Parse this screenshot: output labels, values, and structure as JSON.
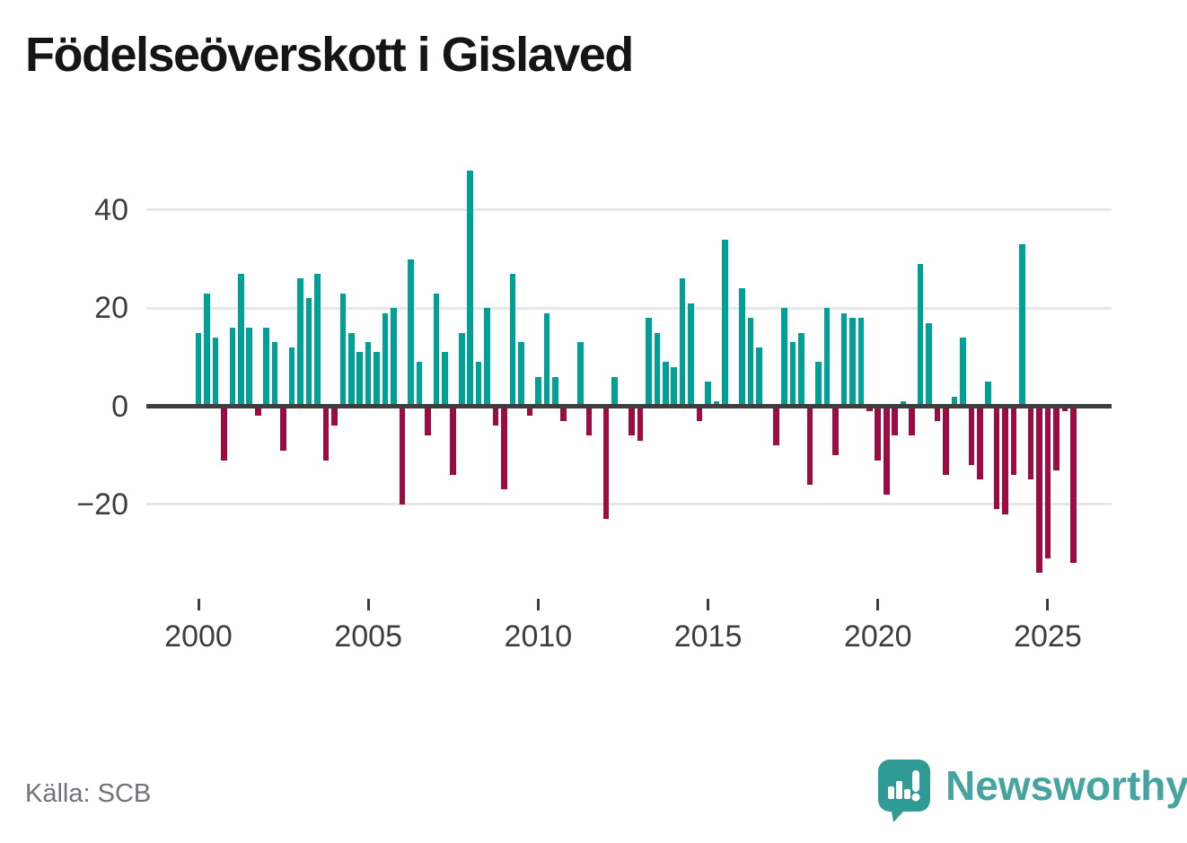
{
  "title": "Födelseöverskott i Gislaved",
  "source": "Källa: SCB",
  "logo": {
    "text": "Newsworthy"
  },
  "y_axis": {
    "ticks": [
      {
        "label": "40",
        "value": 40
      },
      {
        "label": "20",
        "value": 20
      },
      {
        "label": "0",
        "value": 0
      },
      {
        "label": "−20",
        "value": -20
      }
    ],
    "gridline_values": [
      40,
      20,
      -20
    ]
  },
  "x_axis": {
    "ticks": [
      {
        "label": "2000",
        "year": 2000
      },
      {
        "label": "2005",
        "year": 2005
      },
      {
        "label": "2010",
        "year": 2010
      },
      {
        "label": "2015",
        "year": 2015
      },
      {
        "label": "2020",
        "year": 2020
      },
      {
        "label": "2025",
        "year": 2025
      }
    ]
  },
  "chart_data": {
    "type": "bar",
    "title": "Födelseöverskott i Gislaved",
    "period": "quarterly",
    "start": "2000-Q1",
    "end": "2025-Q4",
    "ylim": [
      -36,
      50
    ],
    "grid": true,
    "zero_line": true,
    "colors": {
      "positive": "#00a096",
      "negative": "#9c0c41"
    },
    "series_by_year": [
      {
        "year": 2000,
        "values": [
          15,
          23,
          14,
          -11
        ]
      },
      {
        "year": 2001,
        "values": [
          16,
          27,
          16,
          -2
        ]
      },
      {
        "year": 2002,
        "values": [
          16,
          13,
          -9,
          12
        ]
      },
      {
        "year": 2003,
        "values": [
          26,
          22,
          27,
          -11
        ]
      },
      {
        "year": 2004,
        "values": [
          -4,
          23,
          15,
          11
        ]
      },
      {
        "year": 2005,
        "values": [
          13,
          11,
          19,
          20
        ]
      },
      {
        "year": 2006,
        "values": [
          -20,
          30,
          9,
          -6
        ]
      },
      {
        "year": 2007,
        "values": [
          23,
          11,
          -14,
          15
        ]
      },
      {
        "year": 2008,
        "values": [
          48,
          9,
          20,
          -4
        ]
      },
      {
        "year": 2009,
        "values": [
          -17,
          27,
          13,
          -2
        ]
      },
      {
        "year": 2010,
        "values": [
          6,
          19,
          6,
          -3
        ]
      },
      {
        "year": 2011,
        "values": [
          0,
          13,
          -6,
          0
        ]
      },
      {
        "year": 2012,
        "values": [
          -23,
          6,
          0,
          -6
        ]
      },
      {
        "year": 2013,
        "values": [
          -7,
          18,
          15,
          9
        ]
      },
      {
        "year": 2014,
        "values": [
          8,
          26,
          21,
          -3
        ]
      },
      {
        "year": 2015,
        "values": [
          5,
          1,
          34,
          0
        ]
      },
      {
        "year": 2016,
        "values": [
          24,
          18,
          12,
          0
        ]
      },
      {
        "year": 2017,
        "values": [
          -8,
          20,
          13,
          15
        ]
      },
      {
        "year": 2018,
        "values": [
          -16,
          9,
          20,
          -10
        ]
      },
      {
        "year": 2019,
        "values": [
          19,
          18,
          18,
          -1
        ]
      },
      {
        "year": 2020,
        "values": [
          -11,
          -18,
          -6,
          1
        ]
      },
      {
        "year": 2021,
        "values": [
          -6,
          29,
          17,
          -3
        ]
      },
      {
        "year": 2022,
        "values": [
          -14,
          2,
          14,
          -12
        ]
      },
      {
        "year": 2023,
        "values": [
          -15,
          5,
          -21,
          -22
        ]
      },
      {
        "year": 2024,
        "values": [
          -14,
          33,
          -15,
          -34
        ]
      },
      {
        "year": 2025,
        "values": [
          -31,
          -13,
          -1,
          -32
        ]
      }
    ]
  }
}
